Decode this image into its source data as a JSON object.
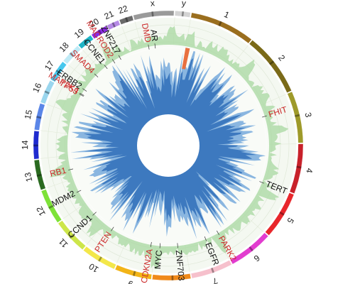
{
  "chart_data": {
    "type": "circos",
    "chromosomes": [
      {
        "name": "1",
        "size": 249,
        "color": "#9a6e1e"
      },
      {
        "name": "2",
        "size": 243,
        "color": "#7a6a18"
      },
      {
        "name": "3",
        "size": 198,
        "color": "#9e9a2a"
      },
      {
        "name": "4",
        "size": 191,
        "color": "#c8212a"
      },
      {
        "name": "5",
        "size": 181,
        "color": "#e8262b"
      },
      {
        "name": "6",
        "size": 171,
        "color": "#e23ccf"
      },
      {
        "name": "7",
        "size": 159,
        "color": "#f6c0cc"
      },
      {
        "name": "8",
        "size": 146,
        "color": "#f08a1a"
      },
      {
        "name": "9",
        "size": 141,
        "color": "#f2b417"
      },
      {
        "name": "10",
        "size": 136,
        "color": "#f3e74a"
      },
      {
        "name": "11",
        "size": 135,
        "color": "#cde64a"
      },
      {
        "name": "12",
        "size": 134,
        "color": "#7de238"
      },
      {
        "name": "13",
        "size": 115,
        "color": "#2a6a20"
      },
      {
        "name": "14",
        "size": 107,
        "color": "#1f2bcf"
      },
      {
        "name": "15",
        "size": 102,
        "color": "#5a86e8"
      },
      {
        "name": "16",
        "size": 90,
        "color": "#9ad6ee"
      },
      {
        "name": "17",
        "size": 81,
        "color": "#46c8ee"
      },
      {
        "name": "18",
        "size": 78,
        "color": "#bfeaf6"
      },
      {
        "name": "19",
        "size": 59,
        "color": "#1fb4c6"
      },
      {
        "name": "20",
        "size": 63,
        "color": "#8a2ae0"
      },
      {
        "name": "21",
        "size": 48,
        "color": "#b68ae6"
      },
      {
        "name": "22",
        "size": 51,
        "color": "#6a6a6a"
      },
      {
        "name": "x",
        "size": 155,
        "color": "#9a9a9a"
      },
      {
        "name": "y",
        "size": 59,
        "color": "#d4d4d4"
      }
    ],
    "genes": [
      {
        "name": "FHIT",
        "chrom": "3",
        "pos": 0.3,
        "color": "#cc2a2a"
      },
      {
        "name": "TERT",
        "chrom": "5",
        "pos": 0.01,
        "color": "#111111"
      },
      {
        "name": "PARK2",
        "chrom": "6",
        "pos": 0.94,
        "color": "#cc2a2a"
      },
      {
        "name": "EGFR",
        "chrom": "7",
        "pos": 0.35,
        "color": "#111111"
      },
      {
        "name": "ZNF703",
        "chrom": "8",
        "pos": 0.26,
        "color": "#111111"
      },
      {
        "name": "MYC",
        "chrom": "8",
        "pos": 0.87,
        "color": "#111111"
      },
      {
        "name": "CDKN2A",
        "chrom": "9",
        "pos": 0.16,
        "color": "#cc2a2a"
      },
      {
        "name": "PTEN",
        "chrom": "10",
        "pos": 0.66,
        "color": "#cc2a2a"
      },
      {
        "name": "CCND1",
        "chrom": "11",
        "pos": 0.51,
        "color": "#111111"
      },
      {
        "name": "MDM2",
        "chrom": "12",
        "pos": 0.51,
        "color": "#111111"
      },
      {
        "name": "RB1",
        "chrom": "13",
        "pos": 0.42,
        "color": "#cc2a2a"
      },
      {
        "name": "TP53",
        "chrom": "17",
        "pos": 0.09,
        "color": "#cc2a2a"
      },
      {
        "name": "MAP2K4",
        "chrom": "17",
        "pos": 0.15,
        "color": "#cc2a2a"
      },
      {
        "name": "ERBB2",
        "chrom": "17",
        "pos": 0.47,
        "color": "#111111"
      },
      {
        "name": "SMAD4",
        "chrom": "18",
        "pos": 0.6,
        "color": "#cc2a2a"
      },
      {
        "name": "CCNE1",
        "chrom": "19",
        "pos": 0.51,
        "color": "#111111"
      },
      {
        "name": "MACROD2",
        "chrom": "20",
        "pos": 0.25,
        "color": "#cc2a2a"
      },
      {
        "name": "ZNF217",
        "chrom": "20",
        "pos": 0.83,
        "color": "#111111"
      },
      {
        "name": "DMD",
        "chrom": "x",
        "pos": 0.22,
        "color": "#cc2a2a"
      },
      {
        "name": "AR",
        "chrom": "x",
        "pos": 0.43,
        "color": "#111111"
      }
    ],
    "tracks": {
      "amplification_color": "#a8d8a0",
      "deletion_dark_color": "#2f6fb8",
      "deletion_light_color": "#8ab6e0",
      "highlight_color": "#e87040"
    }
  }
}
